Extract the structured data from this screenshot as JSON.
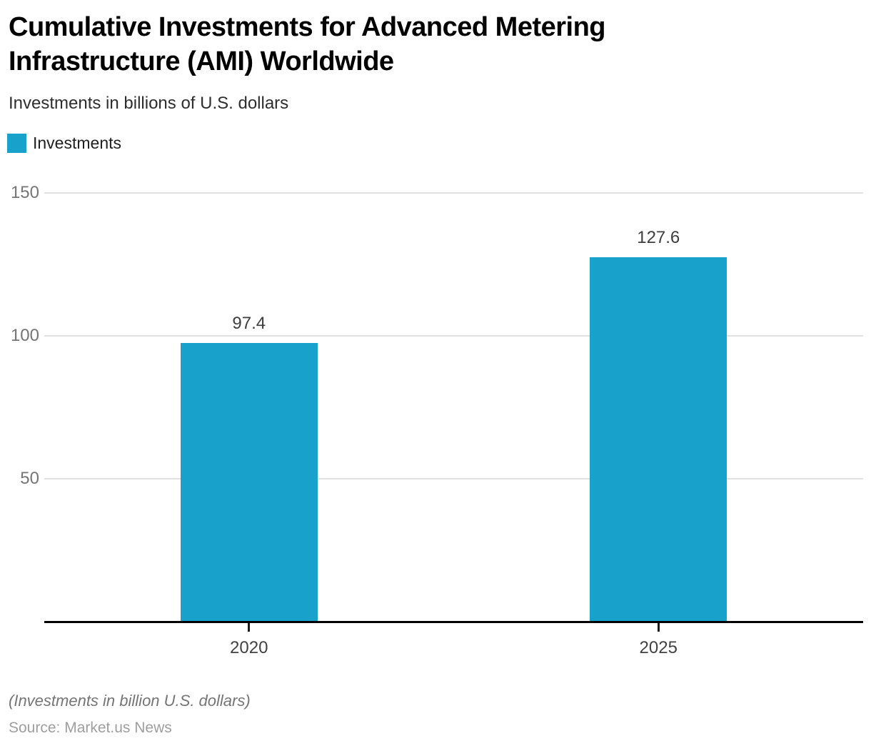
{
  "chart_data": {
    "type": "bar",
    "title": "Cumulative Investments for Advanced Metering Infrastructure (AMI) Worldwide",
    "subtitle": "Investments in billions of U.S. dollars",
    "categories": [
      "2020",
      "2025"
    ],
    "series": [
      {
        "name": "Investments",
        "values": [
          97.4,
          127.6
        ]
      }
    ],
    "value_labels": [
      "97.4",
      "127.6"
    ],
    "yticks": [
      50,
      100,
      150
    ],
    "ylim": [
      0,
      150
    ],
    "grid": true,
    "legend_position": "top-left",
    "value_labels_shown": true,
    "bar_color": "#18A2CB",
    "xlabel": "",
    "ylabel": ""
  },
  "footer": {
    "footnote": "(Investments in billion U.S. dollars)",
    "source": "Source: Market.us News"
  }
}
